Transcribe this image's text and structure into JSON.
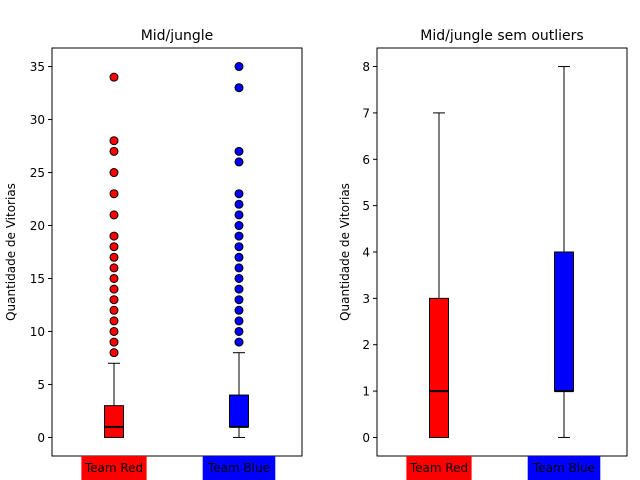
{
  "chart_data": [
    {
      "type": "boxplot",
      "title": "Mid/jungle",
      "ylabel": "Quantidade de Vitorias",
      "ylim": [
        -1.75,
        36.75
      ],
      "yticks": [
        0,
        5,
        10,
        15,
        20,
        25,
        30,
        35
      ],
      "categories": [
        {
          "label": "Team Red",
          "color": "#ff0000",
          "q1": 0,
          "median": 1,
          "q3": 3,
          "whisker_low": 0,
          "whisker_high": 7,
          "outliers": [
            8,
            9,
            10,
            11,
            12,
            13,
            14,
            15,
            16,
            17,
            18,
            19,
            21,
            23,
            25,
            27,
            28,
            34
          ]
        },
        {
          "label": "Team Blue",
          "color": "#0000ff",
          "q1": 1,
          "median": 1,
          "q3": 4,
          "whisker_low": 0,
          "whisker_high": 8,
          "outliers": [
            9,
            10,
            11,
            12,
            13,
            14,
            15,
            16,
            17,
            18,
            19,
            20,
            21,
            22,
            23,
            26,
            27,
            33,
            35
          ]
        }
      ]
    },
    {
      "type": "boxplot",
      "title": "Mid/jungle sem outliers",
      "ylabel": "Quantidade de Vitorias",
      "ylim": [
        -0.4,
        8.4
      ],
      "yticks": [
        0,
        1,
        2,
        3,
        4,
        5,
        6,
        7,
        8
      ],
      "categories": [
        {
          "label": "Team Red",
          "color": "#ff0000",
          "q1": 0,
          "median": 1,
          "q3": 3,
          "whisker_low": 0,
          "whisker_high": 7,
          "outliers": []
        },
        {
          "label": "Team Blue",
          "color": "#0000ff",
          "q1": 1,
          "median": 1,
          "q3": 4,
          "whisker_low": 0,
          "whisker_high": 8,
          "outliers": []
        }
      ]
    }
  ]
}
